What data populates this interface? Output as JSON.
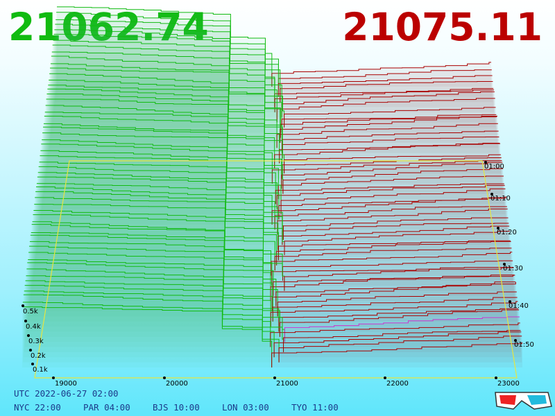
{
  "header": {
    "bid": "21062.74",
    "ask": "21075.11"
  },
  "price_axis": [
    "19000",
    "20000",
    "21000",
    "22000",
    "23000"
  ],
  "time_axis": [
    "01:00",
    "01:10",
    "01:20",
    "01:30",
    "01:40",
    "01:50"
  ],
  "volume_axis": [
    "0.5k",
    "0.4k",
    "0.3k",
    "0.2k",
    "0.1k"
  ],
  "footer": {
    "utc": "UTC 2022-06-27 02:00",
    "clocks": [
      "NYC 22:00",
      "PAR 04:00",
      "BJS 10:00",
      "LON 03:00",
      "TYO 11:00"
    ]
  }
}
